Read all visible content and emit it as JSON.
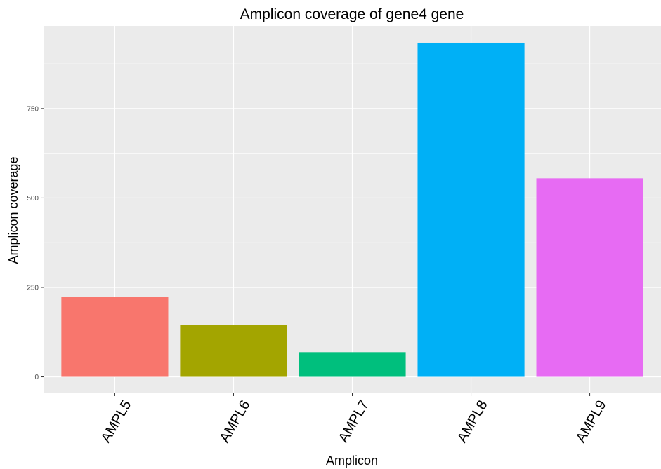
{
  "chart_data": {
    "type": "bar",
    "title": "Amplicon coverage of  gene4 gene",
    "xlabel": "Amplicon",
    "ylabel": "Amplicon coverage",
    "categories": [
      "AMPL5",
      "AMPL6",
      "AMPL7",
      "AMPL8",
      "AMPL9"
    ],
    "values": [
      223,
      145,
      69,
      934,
      555
    ],
    "colors": [
      "#F8766D",
      "#A3A500",
      "#00BF7D",
      "#00B0F6",
      "#E76BF3"
    ],
    "ylim": [
      -46,
      981
    ],
    "yticks": [
      0,
      250,
      500,
      750
    ],
    "ytick_labels": [
      "0",
      "250",
      "500",
      "750"
    ],
    "grid": true,
    "legend": "none"
  }
}
